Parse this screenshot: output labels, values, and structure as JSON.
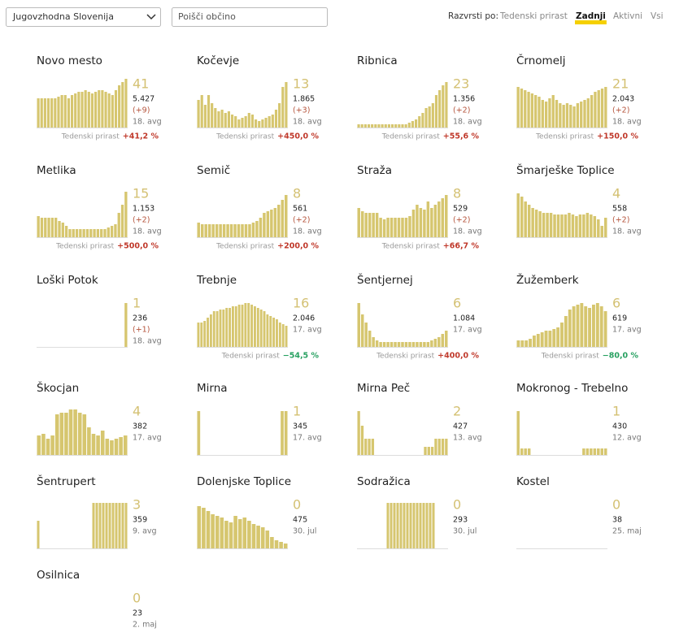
{
  "toolbar": {
    "region": "Jugovzhodna Slovenija",
    "search_placeholder": "Poišči občino",
    "sort_label": "Razvrsti po:",
    "sort_options": [
      "Tedenski prirast",
      "Zadnji",
      "Aktivni",
      "Vsi"
    ],
    "sort_active": 1
  },
  "growth_label": "Tedenski prirast",
  "cards": [
    {
      "name": "Novo mesto",
      "latest": 41,
      "total": "5.427",
      "diff": "(+9)",
      "date": "18. avg",
      "growth": "+41,2 %",
      "growth_color": "#c0392b",
      "bars": [
        36,
        36,
        36,
        36,
        36,
        36,
        38,
        40,
        40,
        36,
        40,
        42,
        44,
        44,
        46,
        44,
        42,
        44,
        46,
        46,
        44,
        42,
        40,
        46,
        52,
        56,
        60
      ]
    },
    {
      "name": "Kočevje",
      "latest": 13,
      "total": "1.865",
      "diff": "(+3)",
      "date": "18. avg",
      "growth": "+450,0 %",
      "growth_color": "#c0392b",
      "bars": [
        34,
        40,
        28,
        40,
        30,
        24,
        20,
        22,
        18,
        20,
        16,
        14,
        10,
        12,
        14,
        18,
        16,
        10,
        8,
        10,
        12,
        14,
        16,
        22,
        30,
        50,
        56
      ]
    },
    {
      "name": "Ribnica",
      "latest": 23,
      "total": "1.356",
      "diff": "(+2)",
      "date": "18. avg",
      "growth": "+55,6 %",
      "growth_color": "#c0392b",
      "bars": [
        4,
        4,
        4,
        4,
        4,
        4,
        4,
        4,
        4,
        4,
        4,
        4,
        4,
        4,
        4,
        6,
        8,
        10,
        14,
        18,
        24,
        26,
        30,
        40,
        46,
        52,
        56
      ]
    },
    {
      "name": "Črnomelj",
      "latest": 21,
      "total": "2.043",
      "diff": "(+2)",
      "date": "18. avg",
      "growth": "+150,0 %",
      "growth_color": "#c0392b",
      "bars": [
        50,
        48,
        46,
        44,
        42,
        40,
        38,
        34,
        32,
        36,
        40,
        34,
        30,
        28,
        30,
        28,
        26,
        30,
        32,
        34,
        36,
        40,
        44,
        46,
        48,
        50
      ]
    },
    {
      "name": "Metlika",
      "latest": 15,
      "total": "1.153",
      "diff": "(+2)",
      "date": "18. avg",
      "growth": "+500,0 %",
      "growth_color": "#c0392b",
      "bars": [
        26,
        24,
        24,
        24,
        24,
        24,
        20,
        18,
        14,
        10,
        10,
        10,
        10,
        10,
        10,
        10,
        10,
        10,
        10,
        10,
        12,
        14,
        16,
        30,
        40,
        56
      ]
    },
    {
      "name": "Semič",
      "latest": 8,
      "total": "561",
      "diff": "(+2)",
      "date": "18. avg",
      "growth": "+200,0 %",
      "growth_color": "#c0392b",
      "bars": [
        18,
        16,
        16,
        16,
        16,
        16,
        16,
        16,
        16,
        16,
        16,
        16,
        16,
        16,
        16,
        18,
        20,
        24,
        30,
        32,
        34,
        36,
        40,
        46,
        52
      ]
    },
    {
      "name": "Straža",
      "latest": 8,
      "total": "529",
      "diff": "(+2)",
      "date": "18. avg",
      "growth": "+66,7 %",
      "growth_color": "#c0392b",
      "bars": [
        36,
        32,
        30,
        30,
        30,
        30,
        24,
        22,
        24,
        24,
        24,
        24,
        24,
        24,
        26,
        34,
        40,
        36,
        34,
        44,
        36,
        40,
        44,
        48,
        52
      ]
    },
    {
      "name": "Šmarješke Toplice",
      "latest": 4,
      "total": "558",
      "diff": "(+2)",
      "date": "18. avg",
      "bars": [
        54,
        50,
        44,
        40,
        36,
        34,
        32,
        30,
        30,
        30,
        28,
        28,
        28,
        28,
        30,
        28,
        26,
        28,
        28,
        30,
        28,
        26,
        22,
        14,
        24
      ]
    },
    {
      "name": "Loški Potok",
      "latest": 1,
      "total": "236",
      "diff": "(+1)",
      "date": "18. avg",
      "bars": [
        0,
        0,
        0,
        0,
        0,
        0,
        0,
        0,
        0,
        0,
        0,
        0,
        0,
        0,
        0,
        0,
        0,
        0,
        0,
        0,
        0,
        0,
        0,
        0,
        0,
        54
      ]
    },
    {
      "name": "Trebnje",
      "latest": 16,
      "total": "2.046",
      "date": "17. avg",
      "growth": "−54,5 %",
      "growth_color": "#27a060",
      "bars": [
        30,
        30,
        32,
        36,
        40,
        44,
        44,
        46,
        46,
        48,
        48,
        50,
        50,
        52,
        52,
        54,
        54,
        52,
        50,
        48,
        46,
        44,
        40,
        38,
        36,
        34,
        30,
        28,
        26
      ]
    },
    {
      "name": "Šentjernej",
      "latest": 6,
      "total": "1.084",
      "date": "17. avg",
      "growth": "+400,0 %",
      "growth_color": "#c0392b",
      "bars": [
        54,
        40,
        30,
        20,
        12,
        8,
        6,
        6,
        6,
        6,
        6,
        6,
        6,
        6,
        6,
        6,
        6,
        6,
        6,
        6,
        8,
        10,
        12,
        16,
        20
      ]
    },
    {
      "name": "Žužemberk",
      "latest": 6,
      "total": "619",
      "date": "17. avg",
      "growth": "−80,0 %",
      "growth_color": "#27a060",
      "bars": [
        8,
        8,
        8,
        10,
        14,
        16,
        18,
        20,
        20,
        22,
        24,
        30,
        38,
        46,
        50,
        52,
        54,
        50,
        48,
        52,
        54,
        50,
        44
      ]
    },
    {
      "name": "Škocjan",
      "latest": 4,
      "total": "382",
      "date": "17. avg",
      "bars": [
        24,
        26,
        20,
        24,
        50,
        52,
        52,
        56,
        56,
        52,
        50,
        34,
        26,
        24,
        30,
        20,
        18,
        20,
        22,
        24
      ]
    },
    {
      "name": "Mirna",
      "latest": 1,
      "total": "345",
      "date": "17. avg",
      "bars": [
        54,
        0,
        0,
        0,
        0,
        0,
        0,
        0,
        0,
        0,
        0,
        0,
        0,
        0,
        0,
        0,
        0,
        0,
        0,
        0,
        0,
        0,
        54,
        54
      ]
    },
    {
      "name": "Mirna Peč",
      "latest": 2,
      "total": "427",
      "date": "13. avg",
      "bars": [
        54,
        36,
        20,
        20,
        20,
        0,
        0,
        0,
        0,
        0,
        0,
        0,
        0,
        0,
        0,
        0,
        0,
        0,
        0,
        10,
        10,
        10,
        20,
        20,
        20,
        20
      ]
    },
    {
      "name": "Mokronog - Trebelno",
      "latest": 1,
      "total": "430",
      "date": "12. avg",
      "bars": [
        54,
        8,
        8,
        8,
        0,
        0,
        0,
        0,
        0,
        0,
        0,
        0,
        0,
        0,
        0,
        0,
        0,
        0,
        8,
        8,
        8,
        8,
        8,
        8,
        8
      ]
    },
    {
      "name": "Šentrupert",
      "latest": 3,
      "total": "359",
      "date": "9. avg",
      "bars": [
        34,
        0,
        0,
        0,
        0,
        0,
        0,
        0,
        0,
        0,
        0,
        0,
        0,
        0,
        0,
        0,
        0,
        56,
        56,
        56,
        56,
        56,
        56,
        56,
        56,
        56,
        56,
        56
      ]
    },
    {
      "name": "Dolenjske Toplice",
      "latest": 0,
      "total": "475",
      "date": "30. jul",
      "bars": [
        52,
        50,
        46,
        42,
        40,
        38,
        34,
        32,
        40,
        36,
        38,
        34,
        30,
        28,
        26,
        22,
        14,
        10,
        8,
        6
      ]
    },
    {
      "name": "Sodražica",
      "latest": 0,
      "total": "293",
      "date": "30. jul",
      "bars": [
        0,
        0,
        0,
        0,
        0,
        0,
        0,
        0,
        0,
        56,
        56,
        56,
        56,
        56,
        56,
        56,
        56,
        56,
        56,
        56,
        56,
        56,
        56,
        56,
        0,
        0,
        0,
        0
      ]
    },
    {
      "name": "Kostel",
      "latest": 0,
      "total": "38",
      "date": "25. maj",
      "bars": [
        0,
        0,
        0,
        0,
        0,
        0,
        0,
        0,
        0,
        0,
        0,
        0,
        0,
        0,
        0,
        0,
        0,
        0,
        0,
        0
      ]
    },
    {
      "name": "Osilnica",
      "latest": 0,
      "total": "23",
      "date": "2. maj",
      "bars": [
        0,
        0,
        0,
        0,
        0,
        0,
        0,
        0,
        0,
        0,
        0,
        0,
        0,
        0,
        0,
        0,
        0,
        0,
        0,
        0
      ]
    }
  ]
}
